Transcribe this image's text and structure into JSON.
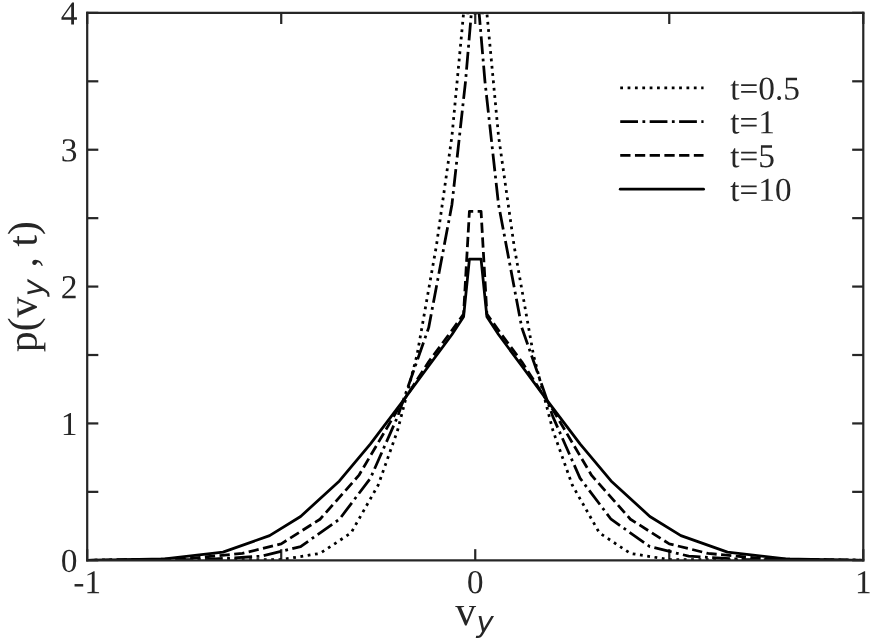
{
  "chart_data": {
    "type": "line",
    "xlabel": "v$_{y}$",
    "ylabel": "p(v$_{y}$ , t)",
    "xlim": [
      -1,
      1
    ],
    "ylim": [
      0,
      4
    ],
    "xticks": [
      -1,
      {
        "value": -0.5,
        "label": null
      },
      0,
      {
        "value": 0.5,
        "label": null
      },
      1
    ],
    "yticks": [
      0,
      {
        "value": 0.5,
        "label": null
      },
      1,
      {
        "value": 1.5,
        "label": null
      },
      2,
      {
        "value": 2.5,
        "label": null
      },
      3,
      {
        "value": 3.5,
        "label": null
      },
      4
    ],
    "grid": false,
    "legend": "top right",
    "series": [
      {
        "name": "t=0.5",
        "color": "#000000",
        "line_style": "dotted",
        "x": [
          -1,
          -0.5,
          -0.4,
          -0.32,
          -0.25,
          -0.2,
          -0.15,
          -0.1,
          -0.06,
          -0.03,
          0.03,
          0.06,
          0.1,
          0.15,
          0.2,
          0.25,
          0.32,
          0.4,
          0.5,
          1
        ],
        "values": [
          0,
          0.005,
          0.05,
          0.2,
          0.55,
          0.95,
          1.5,
          2.3,
          3.1,
          4,
          4,
          3.1,
          2.3,
          1.5,
          0.95,
          0.55,
          0.2,
          0.05,
          0.005,
          0
        ]
      },
      {
        "name": "t=1",
        "color": "#000000",
        "line_style": "dashdot",
        "x": [
          -1,
          -0.7,
          -0.55,
          -0.45,
          -0.35,
          -0.27,
          -0.2,
          -0.12,
          -0.06,
          -0.025,
          -0.01,
          0.01,
          0.025,
          0.06,
          0.12,
          0.2,
          0.27,
          0.35,
          0.45,
          0.55,
          0.7,
          1
        ],
        "values": [
          0,
          0.005,
          0.03,
          0.1,
          0.3,
          0.6,
          1.05,
          1.7,
          2.6,
          3.5,
          4,
          4,
          3.5,
          2.6,
          1.7,
          1.05,
          0.6,
          0.3,
          0.1,
          0.03,
          0.005,
          0
        ]
      },
      {
        "name": "t=5",
        "color": "#000000",
        "line_style": "dashed",
        "x": [
          -1,
          -0.75,
          -0.6,
          -0.5,
          -0.4,
          -0.3,
          -0.2,
          -0.12,
          -0.06,
          -0.03,
          -0.015,
          0.015,
          0.03,
          0.06,
          0.12,
          0.2,
          0.3,
          0.4,
          0.5,
          0.6,
          0.75,
          1
        ],
        "values": [
          0,
          0.01,
          0.05,
          0.12,
          0.3,
          0.62,
          1.1,
          1.45,
          1.68,
          1.8,
          2.55,
          2.55,
          1.8,
          1.68,
          1.45,
          1.1,
          0.62,
          0.3,
          0.12,
          0.05,
          0.01,
          0
        ]
      },
      {
        "name": "t=10",
        "color": "#000000",
        "line_style": "solid",
        "x": [
          -1,
          -0.8,
          -0.65,
          -0.53,
          -0.45,
          -0.35,
          -0.27,
          -0.19,
          -0.12,
          -0.06,
          -0.03,
          -0.015,
          0.015,
          0.03,
          0.06,
          0.12,
          0.19,
          0.27,
          0.35,
          0.45,
          0.53,
          0.65,
          0.8,
          1
        ],
        "values": [
          0,
          0.01,
          0.06,
          0.18,
          0.32,
          0.58,
          0.85,
          1.15,
          1.42,
          1.65,
          1.78,
          2.2,
          2.2,
          1.78,
          1.65,
          1.42,
          1.15,
          0.85,
          0.58,
          0.32,
          0.18,
          0.06,
          0.01,
          0
        ]
      }
    ]
  }
}
